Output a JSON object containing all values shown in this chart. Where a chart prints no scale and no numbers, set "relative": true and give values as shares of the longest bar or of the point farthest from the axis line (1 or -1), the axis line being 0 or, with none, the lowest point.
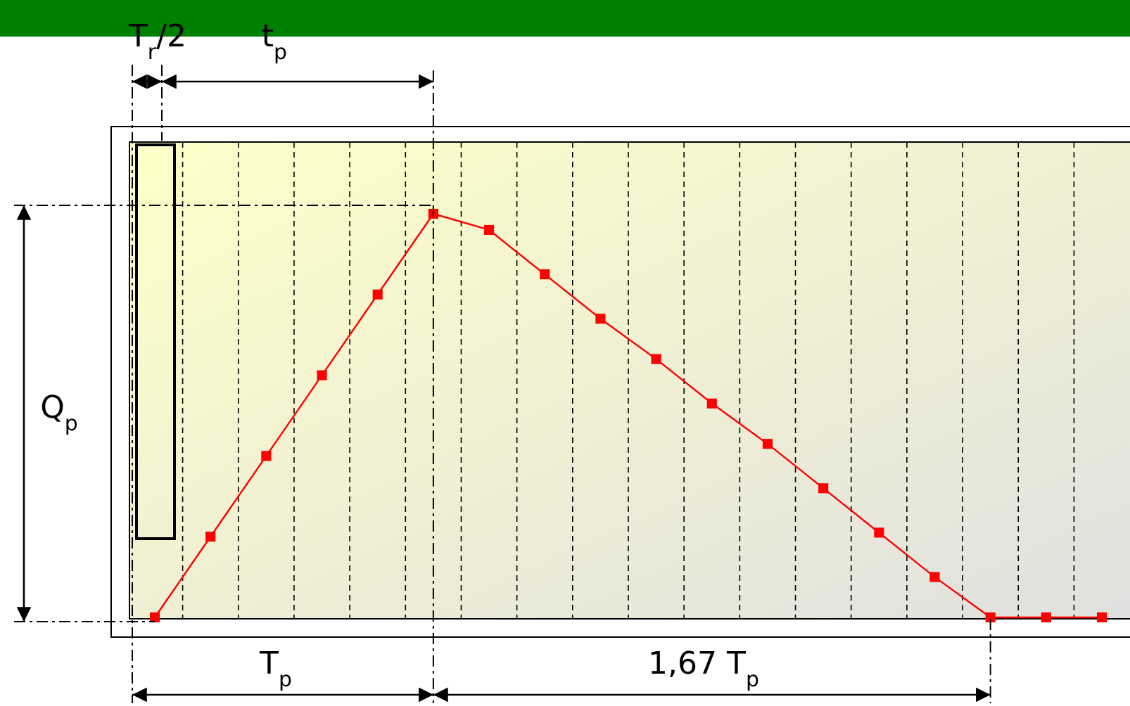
{
  "chart_data": {
    "type": "line",
    "relative": true,
    "categories": [
      null,
      null,
      null,
      null,
      null,
      null,
      null,
      null,
      null,
      null,
      null,
      null,
      null,
      null,
      null,
      null,
      null,
      null
    ],
    "series": [
      {
        "color": "#ff0000",
        "values": [
          0,
          0.2,
          0.4,
          0.6,
          0.8,
          1,
          0.96,
          0.85,
          0.74,
          0.64,
          0.53,
          0.43,
          0.32,
          0.21,
          0.1,
          0,
          0,
          0
        ]
      }
    ],
    "marker": "square",
    "line_style": "solid",
    "grid": "x",
    "tick_labels": false,
    "annotations": [
      "T$_{r}$/2",
      "t$_{p}$",
      "Q$_{p}$",
      "T$_{p}$",
      "1,67 T$_{p}$"
    ]
  }
}
